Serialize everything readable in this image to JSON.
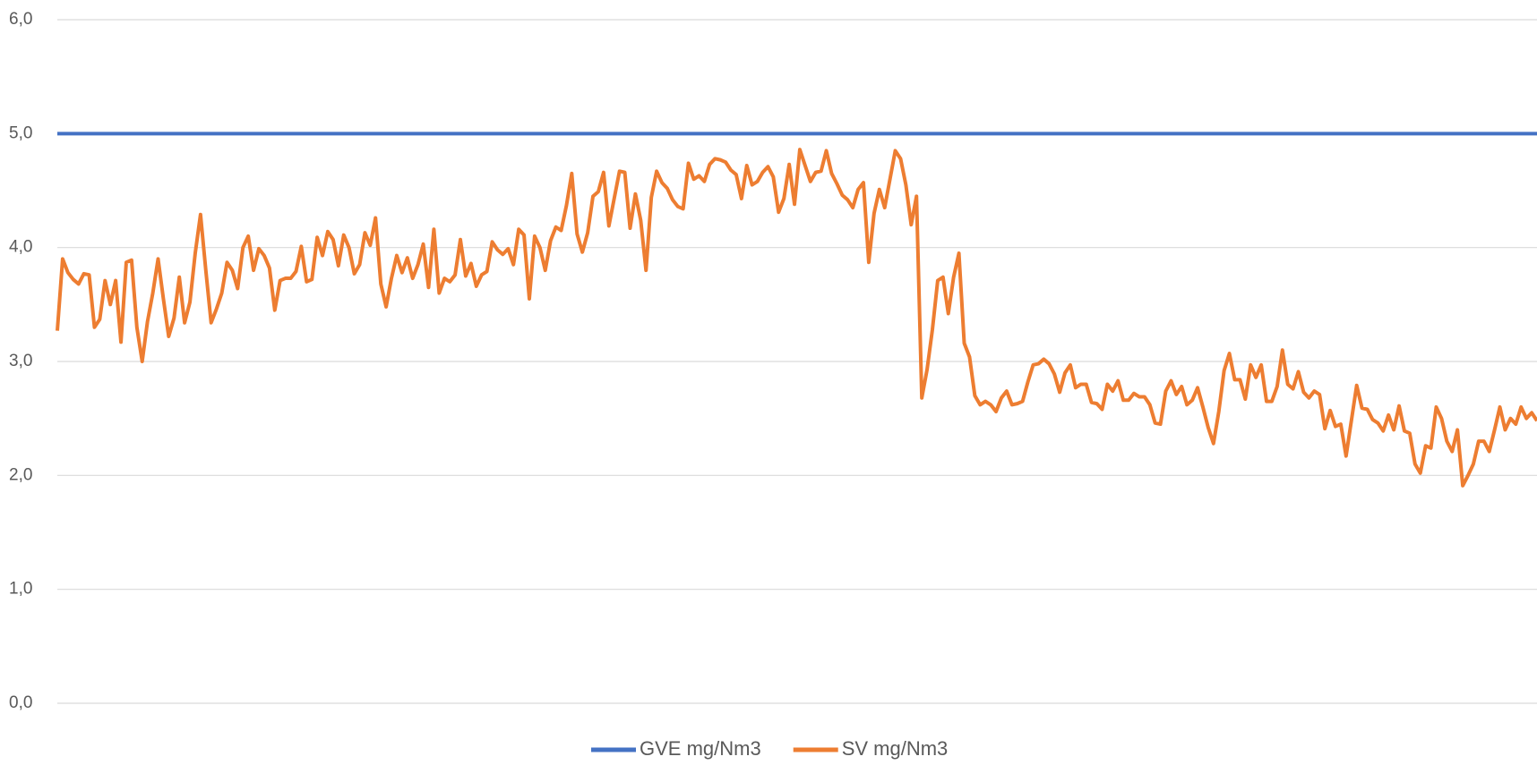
{
  "chart_data": {
    "type": "line",
    "ylim": [
      0,
      6
    ],
    "yticks": [
      {
        "value": 0,
        "label": "0,0"
      },
      {
        "value": 1,
        "label": "1,0"
      },
      {
        "value": 2,
        "label": "2,0"
      },
      {
        "value": 3,
        "label": "3,0"
      },
      {
        "value": 4,
        "label": "4,0"
      },
      {
        "value": 5,
        "label": "5,0"
      },
      {
        "value": 6,
        "label": "6,0"
      }
    ],
    "grid": true,
    "legend": "bottom",
    "series": [
      {
        "name": "GVE mg/Nm3",
        "color": "#4472c4",
        "values": [
          5,
          5,
          5,
          5,
          5,
          5,
          5,
          5,
          5,
          5,
          5,
          5,
          5,
          5,
          5,
          5,
          5,
          5,
          5,
          5,
          5,
          5,
          5,
          5,
          5,
          5,
          5,
          5,
          5,
          5,
          5,
          5,
          5,
          5,
          5,
          5,
          5,
          5,
          5,
          5,
          5,
          5,
          5,
          5,
          5,
          5,
          5,
          5,
          5,
          5,
          5,
          5,
          5,
          5,
          5,
          5,
          5,
          5,
          5,
          5,
          5,
          5,
          5,
          5,
          5,
          5,
          5,
          5,
          5,
          5,
          5,
          5,
          5,
          5,
          5,
          5,
          5,
          5,
          5,
          5,
          5,
          5,
          5,
          5,
          5,
          5,
          5,
          5,
          5,
          5,
          5,
          5,
          5,
          5,
          5,
          5,
          5,
          5,
          5,
          5,
          5,
          5,
          5,
          5,
          5,
          5,
          5,
          5,
          5,
          5,
          5,
          5,
          5,
          5,
          5,
          5,
          5,
          5,
          5,
          5,
          5,
          5,
          5,
          5,
          5,
          5,
          5,
          5,
          5,
          5,
          5,
          5,
          5,
          5,
          5,
          5,
          5,
          5,
          5,
          5,
          5,
          5,
          5,
          5,
          5,
          5,
          5,
          5,
          5,
          5,
          5,
          5,
          5,
          5,
          5,
          5,
          5,
          5,
          5,
          5,
          5,
          5,
          5,
          5,
          5,
          5,
          5,
          5,
          5,
          5,
          5,
          5,
          5,
          5,
          5,
          5,
          5,
          5,
          5,
          5,
          5,
          5,
          5,
          5,
          5,
          5,
          5,
          5,
          5,
          5,
          5,
          5,
          5,
          5,
          5,
          5,
          5,
          5,
          5,
          5,
          5,
          5,
          5,
          5,
          5,
          5,
          5,
          5,
          5,
          5,
          5,
          5,
          5,
          5,
          5,
          5,
          5,
          5,
          5,
          5,
          5,
          5,
          5,
          5,
          5,
          5,
          5,
          5,
          5,
          5,
          5,
          5,
          5,
          5,
          5,
          5,
          5,
          5,
          5,
          5,
          5,
          5,
          5,
          5,
          5,
          5,
          5,
          5,
          5,
          5,
          5,
          5,
          5,
          5,
          5,
          5,
          5,
          5,
          5,
          5,
          5,
          5,
          5,
          5,
          5,
          5,
          5,
          5,
          5,
          5,
          5,
          5,
          5,
          5,
          5,
          5,
          5,
          5,
          5,
          5
        ]
      },
      {
        "name": "SV mg/Nm3",
        "color": "#ed7d31",
        "values": [
          3.27,
          3.9,
          3.78,
          3.72,
          3.68,
          3.77,
          3.76,
          3.3,
          3.37,
          3.71,
          3.5,
          3.71,
          3.17,
          3.87,
          3.89,
          3.3,
          3.0,
          3.35,
          3.6,
          3.9,
          3.55,
          3.22,
          3.38,
          3.74,
          3.34,
          3.52,
          3.95,
          4.29,
          3.8,
          3.34,
          3.46,
          3.6,
          3.87,
          3.8,
          3.64,
          4.0,
          4.1,
          3.8,
          3.99,
          3.93,
          3.82,
          3.45,
          3.71,
          3.73,
          3.73,
          3.79,
          4.01,
          3.7,
          3.72,
          4.09,
          3.93,
          4.14,
          4.07,
          3.84,
          4.11,
          4.0,
          3.77,
          3.85,
          4.13,
          4.02,
          4.26,
          3.68,
          3.48,
          3.73,
          3.93,
          3.78,
          3.91,
          3.73,
          3.85,
          4.03,
          3.65,
          4.16,
          3.6,
          3.73,
          3.7,
          3.76,
          4.07,
          3.75,
          3.86,
          3.66,
          3.76,
          3.79,
          4.05,
          3.98,
          3.94,
          3.99,
          3.85,
          4.16,
          4.11,
          3.55,
          4.1,
          4.0,
          3.8,
          4.06,
          4.18,
          4.15,
          4.37,
          4.65,
          4.12,
          3.96,
          4.13,
          4.45,
          4.49,
          4.66,
          4.19,
          4.43,
          4.67,
          4.66,
          4.17,
          4.47,
          4.24,
          3.8,
          4.44,
          4.67,
          4.57,
          4.52,
          4.42,
          4.36,
          4.34,
          4.74,
          4.6,
          4.63,
          4.58,
          4.73,
          4.78,
          4.77,
          4.75,
          4.68,
          4.64,
          4.43,
          4.72,
          4.55,
          4.58,
          4.66,
          4.71,
          4.62,
          4.31,
          4.43,
          4.73,
          4.38,
          4.86,
          4.72,
          4.58,
          4.66,
          4.67,
          4.85,
          4.65,
          4.56,
          4.46,
          4.42,
          4.35,
          4.51,
          4.57,
          3.87,
          4.3,
          4.51,
          4.35,
          4.6,
          4.85,
          4.78,
          4.55,
          4.2,
          4.45,
          2.68,
          2.93,
          3.28,
          3.71,
          3.74,
          3.42,
          3.74,
          3.95,
          3.16,
          3.04,
          2.7,
          2.62,
          2.65,
          2.62,
          2.56,
          2.68,
          2.74,
          2.62,
          2.63,
          2.65,
          2.82,
          2.97,
          2.98,
          3.02,
          2.98,
          2.89,
          2.73,
          2.9,
          2.97,
          2.77,
          2.8,
          2.8,
          2.64,
          2.63,
          2.58,
          2.8,
          2.74,
          2.83,
          2.66,
          2.66,
          2.72,
          2.69,
          2.69,
          2.62,
          2.46,
          2.45,
          2.74,
          2.83,
          2.71,
          2.78,
          2.62,
          2.66,
          2.77,
          2.6,
          2.42,
          2.28,
          2.56,
          2.92,
          3.07,
          2.84,
          2.84,
          2.67,
          2.97,
          2.86,
          2.97,
          2.65,
          2.65,
          2.78,
          3.1,
          2.8,
          2.76,
          2.91,
          2.73,
          2.68,
          2.74,
          2.71,
          2.41,
          2.57,
          2.43,
          2.45,
          2.17,
          2.48,
          2.79,
          2.59,
          2.58,
          2.49,
          2.46,
          2.39,
          2.53,
          2.4,
          2.61,
          2.39,
          2.37,
          2.1,
          2.02,
          2.26,
          2.24,
          2.6,
          2.5,
          2.3,
          2.21,
          2.4,
          1.91,
          2.0,
          2.1,
          2.3,
          2.3,
          2.21,
          2.4,
          2.6,
          2.4,
          2.5,
          2.45,
          2.6,
          2.5,
          2.55,
          2.48
        ]
      }
    ]
  }
}
